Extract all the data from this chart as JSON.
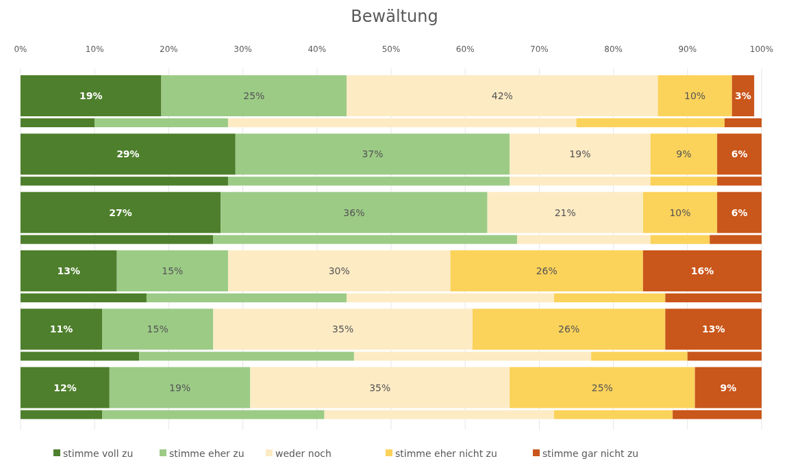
{
  "chart_data": {
    "type": "bar",
    "orientation": "horizontal",
    "stacked": true,
    "title": "Bewältung",
    "categories": [
      null,
      null,
      null,
      null,
      null,
      null,
      null,
      null,
      null,
      null,
      null,
      null
    ],
    "xlim": [
      0,
      100
    ],
    "xticks": [
      {
        "value": 0,
        "label": "0%"
      },
      {
        "value": 10,
        "label": "10%"
      },
      {
        "value": 20,
        "label": "20%"
      },
      {
        "value": 30,
        "label": "30%"
      },
      {
        "value": 40,
        "label": "40%"
      },
      {
        "value": 50,
        "label": "50%"
      },
      {
        "value": 60,
        "label": "60%"
      },
      {
        "value": 70,
        "label": "70%"
      },
      {
        "value": 80,
        "label": "80%"
      },
      {
        "value": 90,
        "label": "90%"
      },
      {
        "value": 100,
        "label": "100%"
      }
    ],
    "grid": "x",
    "legend": "bottom",
    "series": [
      {
        "name": "stimme voll zu",
        "color": "#4e7f2c",
        "values": [
          19,
          10,
          29,
          28,
          27,
          26,
          13,
          17,
          11,
          16,
          12,
          11
        ],
        "value_labels": [
          "19%",
          null,
          "29%",
          null,
          "27%",
          null,
          "13%",
          null,
          "11%",
          null,
          "12%",
          null
        ]
      },
      {
        "name": "stimme eher zu",
        "color": "#9ccb86",
        "values": [
          25,
          18,
          37,
          38,
          36,
          41,
          15,
          27,
          15,
          29,
          19,
          30
        ],
        "value_labels": [
          "25%",
          null,
          "37%",
          null,
          "36%",
          null,
          "15%",
          null,
          "15%",
          null,
          "19%",
          null
        ]
      },
      {
        "name": "weder noch",
        "color": "#fdebc4",
        "values": [
          42,
          47,
          19,
          19,
          21,
          18,
          30,
          28,
          35,
          32,
          35,
          31
        ],
        "value_labels": [
          "42%",
          null,
          "19%",
          null,
          "21%",
          null,
          "30%",
          null,
          "35%",
          null,
          "35%",
          null
        ]
      },
      {
        "name": "stimme eher nicht zu",
        "color": "#fbd25a",
        "values": [
          10,
          20,
          9,
          9,
          10,
          8,
          26,
          15,
          26,
          13,
          25,
          16
        ],
        "value_labels": [
          "10%",
          null,
          "9%",
          null,
          "10%",
          null,
          "26%",
          null,
          "26%",
          null,
          "25%",
          null
        ]
      },
      {
        "name": "stimme gar nicht zu",
        "color": "#c9561a",
        "values": [
          3,
          5,
          6,
          6,
          6,
          7,
          16,
          13,
          13,
          10,
          9,
          12
        ],
        "value_labels": [
          "3%",
          null,
          "6%",
          null,
          "6%",
          null,
          "16%",
          null,
          "13%",
          null,
          "9%",
          null
        ]
      }
    ]
  }
}
